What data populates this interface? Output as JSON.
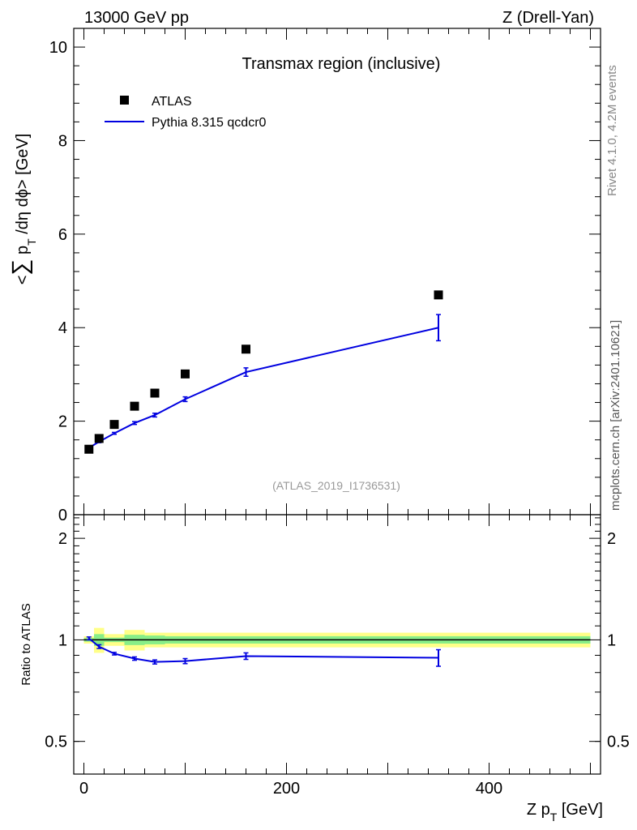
{
  "header": {
    "left_label": "13000 GeV pp",
    "right_label": "Z (Drell-Yan)"
  },
  "side_labels": {
    "rivet": "Rivet 4.1.0,  4.2M events",
    "mcplots": "mcplots.cern.ch [arXiv:2401.10621]"
  },
  "chart_data": [
    {
      "type": "scatter",
      "title": "Transmax region (inclusive)",
      "watermark": "(ATLAS_2019_I1736531)",
      "ylabel": "<∑ p_T /dη dϕ> [GeV]",
      "xlim": [
        -10,
        510
      ],
      "ylim": [
        0,
        10.4
      ],
      "y_ticks": [
        0,
        2,
        4,
        6,
        8,
        10
      ],
      "y_tick_labels": [
        "0",
        "2",
        "4",
        "6",
        "8",
        "10"
      ],
      "legend": {
        "position": "top-left",
        "entries": [
          "ATLAS",
          "Pythia 8.315 qcdcr0"
        ]
      },
      "series": [
        {
          "name": "ATLAS",
          "style": "square-markers",
          "color": "#000000",
          "x": [
            5,
            15,
            30,
            50,
            70,
            100,
            160,
            350
          ],
          "y": [
            1.4,
            1.63,
            1.93,
            2.32,
            2.6,
            3.01,
            3.54,
            4.7
          ]
        },
        {
          "name": "Pythia 8.315 qcdcr0",
          "style": "line-with-errors",
          "color": "#0000e0",
          "x": [
            5,
            15,
            30,
            50,
            70,
            100,
            160,
            350
          ],
          "y": [
            1.43,
            1.56,
            1.74,
            1.96,
            2.13,
            2.47,
            3.05,
            4.0
          ],
          "err": [
            0.02,
            0.02,
            0.02,
            0.03,
            0.04,
            0.05,
            0.09,
            0.28
          ]
        }
      ]
    },
    {
      "type": "line",
      "title": "",
      "ylabel": "Ratio to ATLAS",
      "xlabel": "Z p_T [GeV]",
      "xlim": [
        -10,
        510
      ],
      "ylim": [
        0.4,
        2.35
      ],
      "x_ticks": [
        0,
        200,
        400
      ],
      "x_tick_labels": [
        "0",
        "200",
        "400"
      ],
      "y_ticks": [
        0.5,
        1,
        2
      ],
      "y_tick_labels": [
        "0.5",
        "1",
        "2"
      ],
      "reference_line": 1.0,
      "bands": {
        "x_edges": [
          0,
          10,
          20,
          40,
          60,
          80,
          120,
          200,
          500
        ],
        "yellow_halfwidth": [
          0.025,
          0.085,
          0.04,
          0.07,
          0.05,
          0.05,
          0.05,
          0.05
        ],
        "green_halfwidth": [
          0.012,
          0.04,
          0.015,
          0.035,
          0.03,
          0.025,
          0.025,
          0.025
        ]
      },
      "series": [
        {
          "name": "Pythia 8.315 qcdcr0",
          "color": "#0000e0",
          "x": [
            5,
            15,
            30,
            50,
            70,
            100,
            160,
            350
          ],
          "y": [
            1.01,
            0.955,
            0.91,
            0.88,
            0.86,
            0.865,
            0.895,
            0.885
          ],
          "err": [
            0.01,
            0.012,
            0.008,
            0.01,
            0.012,
            0.015,
            0.02,
            0.05
          ]
        }
      ]
    }
  ]
}
